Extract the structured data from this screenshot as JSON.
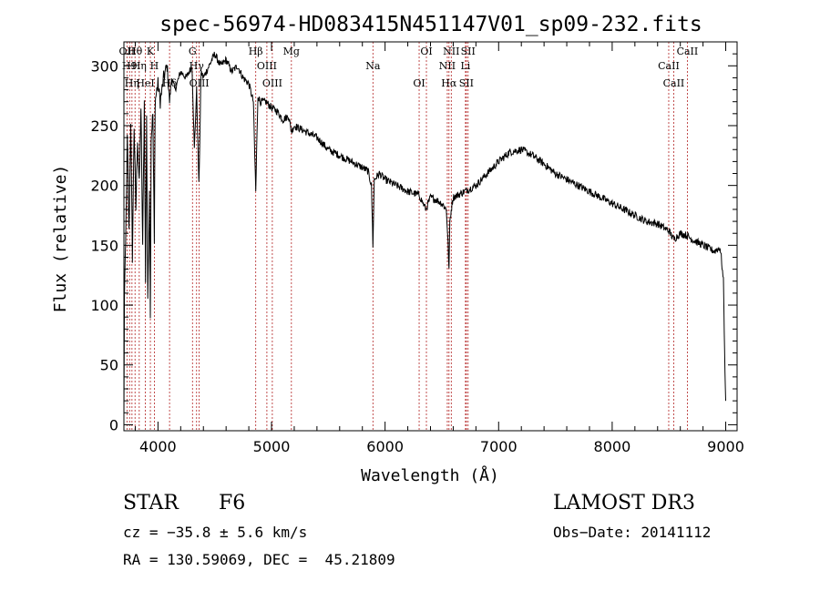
{
  "chart_data": {
    "type": "line",
    "title": "spec-56974-HD083415N451147V01_sp09-232.fits",
    "xlabel": "Wavelength (Å)",
    "ylabel": "Flux (relative)",
    "xlim": [
      3700,
      9100
    ],
    "ylim": [
      -5,
      320
    ],
    "xticks": [
      4000,
      5000,
      6000,
      7000,
      8000,
      9000
    ],
    "yticks": [
      0,
      50,
      100,
      150,
      200,
      250,
      300
    ],
    "series": [
      {
        "name": "flux",
        "x": [
          3700,
          3705,
          3715,
          3730,
          3745,
          3760,
          3775,
          3790,
          3805,
          3820,
          3835,
          3850,
          3865,
          3880,
          3890,
          3900,
          3910,
          3925,
          3933,
          3940,
          3955,
          3968,
          3975,
          3990,
          4000,
          4020,
          4050,
          4080,
          4102,
          4120,
          4150,
          4200,
          4250,
          4300,
          4320,
          4340,
          4360,
          4380,
          4400,
          4450,
          4500,
          4550,
          4600,
          4650,
          4700,
          4750,
          4800,
          4840,
          4861,
          4880,
          4900,
          4950,
          5000,
          5050,
          5100,
          5150,
          5175,
          5200,
          5300,
          5400,
          5500,
          5600,
          5700,
          5800,
          5850,
          5880,
          5893,
          5905,
          5950,
          6000,
          6100,
          6200,
          6300,
          6360,
          6400,
          6450,
          6500,
          6540,
          6555,
          6563,
          6570,
          6590,
          6600,
          6700,
          6800,
          6900,
          7000,
          7100,
          7200,
          7300,
          7400,
          7500,
          7600,
          7700,
          7800,
          7900,
          8000,
          8100,
          8200,
          8300,
          8400,
          8500,
          8542,
          8600,
          8662,
          8700,
          8800,
          8900,
          8950,
          8960,
          8980,
          8990,
          9000
        ],
        "y": [
          5,
          110,
          150,
          240,
          160,
          255,
          140,
          250,
          180,
          240,
          200,
          265,
          150,
          270,
          120,
          260,
          100,
          200,
          95,
          240,
          260,
          150,
          270,
          280,
          285,
          270,
          290,
          300,
          270,
          290,
          280,
          295,
          290,
          300,
          230,
          280,
          200,
          295,
          290,
          300,
          310,
          300,
          305,
          295,
          300,
          290,
          285,
          270,
          195,
          275,
          270,
          270,
          265,
          262,
          255,
          258,
          245,
          250,
          245,
          240,
          230,
          225,
          220,
          215,
          212,
          200,
          150,
          205,
          210,
          205,
          200,
          195,
          192,
          180,
          190,
          188,
          185,
          180,
          150,
          130,
          170,
          185,
          190,
          195,
          200,
          210,
          220,
          228,
          230,
          225,
          218,
          210,
          205,
          200,
          195,
          190,
          185,
          180,
          175,
          170,
          168,
          162,
          155,
          160,
          158,
          155,
          150,
          145,
          148,
          140,
          120,
          60,
          20
        ]
      }
    ],
    "line_markers": [
      {
        "x": 3727,
        "label": "OII"
      },
      {
        "x": 3750,
        "label": "H9"
      },
      {
        "x": 3771,
        "label": "Hη"
      },
      {
        "x": 3798,
        "label": "Hθ"
      },
      {
        "x": 3835,
        "label": "Hη"
      },
      {
        "x": 3889,
        "label": "HeI"
      },
      {
        "x": 3933,
        "label": "K"
      },
      {
        "x": 3968,
        "label": "H"
      },
      {
        "x": 4102,
        "label": "Hδ"
      },
      {
        "x": 4304,
        "label": "G"
      },
      {
        "x": 4340,
        "label": "Hγ"
      },
      {
        "x": 4363,
        "label": "OIII"
      },
      {
        "x": 4861,
        "label": "Hβ"
      },
      {
        "x": 4959,
        "label": "OIII"
      },
      {
        "x": 5007,
        "label": "OIII"
      },
      {
        "x": 5175,
        "label": "Mg"
      },
      {
        "x": 5893,
        "label": "Na"
      },
      {
        "x": 6300,
        "label": "OI"
      },
      {
        "x": 6364,
        "label": "OI"
      },
      {
        "x": 6548,
        "label": "NII"
      },
      {
        "x": 6563,
        "label": "Hα"
      },
      {
        "x": 6583,
        "label": "NII"
      },
      {
        "x": 6708,
        "label": "Li"
      },
      {
        "x": 6716,
        "label": "SII"
      },
      {
        "x": 6731,
        "label": "SII"
      },
      {
        "x": 8498,
        "label": "CaII"
      },
      {
        "x": 8542,
        "label": "CaII"
      },
      {
        "x": 8662,
        "label": "CaII"
      }
    ]
  },
  "info": {
    "class_label": "STAR",
    "subclass": "F6",
    "survey": "LAMOST DR3",
    "cz": "cz = −35.8 ± 5.6 km/s",
    "obs_date": "Obs−Date: 20141112",
    "coords": "RA = 130.59069, DEC =  45.21809"
  },
  "colors": {
    "line": "#000000",
    "marker": "#b22222"
  }
}
